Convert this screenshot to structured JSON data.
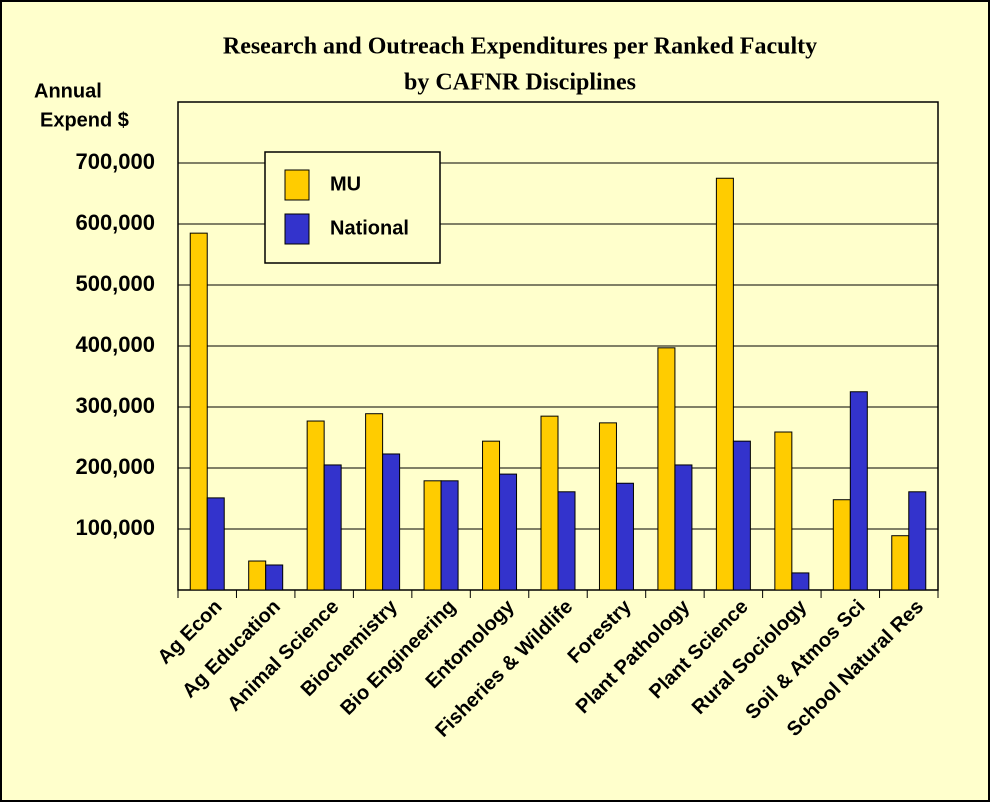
{
  "chart_data": {
    "type": "bar",
    "title": [
      "Research and Outreach Expenditures per Ranked Faculty",
      "by CAFNR Disciplines"
    ],
    "y_label": [
      "Annual",
      "Expend $"
    ],
    "categories": [
      "Ag Econ",
      "Ag Education",
      "Animal Science",
      "Biochemistry",
      "Bio Engineering",
      "Entomology",
      "Fisheries & Wildlife",
      "Forestry",
      "Plant Pathology",
      "Plant Science",
      "Rural Sociology",
      "Soil & Atmos Sci",
      "School Natural Res"
    ],
    "series": [
      {
        "name": "MU",
        "color": "#ffcc00",
        "values": [
          585000,
          47500,
          277000,
          289000,
          179000,
          244000,
          285000,
          274000,
          397000,
          675000,
          259000,
          148000,
          89000
        ]
      },
      {
        "name": "National",
        "color": "#3333cc",
        "values": [
          151000,
          41000,
          205000,
          223000,
          179000,
          190000,
          161000,
          175000,
          205000,
          244000,
          28000,
          325000,
          161000
        ]
      }
    ],
    "ylim": [
      0,
      800000
    ],
    "yticks": [
      {
        "value": 100000,
        "label": "100,000"
      },
      {
        "value": 200000,
        "label": "200,000"
      },
      {
        "value": 300000,
        "label": "300,000"
      },
      {
        "value": 400000,
        "label": "400,000"
      },
      {
        "value": 500000,
        "label": "500,000"
      },
      {
        "value": 600000,
        "label": "600,000"
      },
      {
        "value": 700000,
        "label": "700,000"
      }
    ],
    "grid": true
  }
}
